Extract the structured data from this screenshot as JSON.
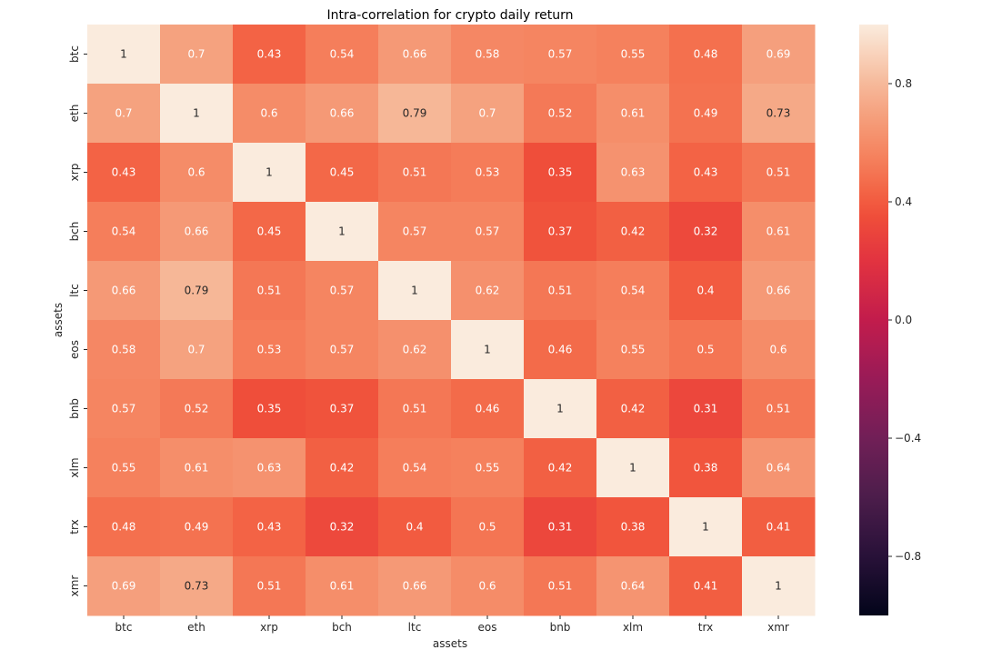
{
  "chart_data": {
    "type": "heatmap",
    "title": "Intra-correlation for crypto daily return",
    "xlabel": "assets",
    "ylabel": "assets",
    "x_categories": [
      "btc",
      "eth",
      "xrp",
      "bch",
      "ltc",
      "eos",
      "bnb",
      "xlm",
      "trx",
      "xmr"
    ],
    "y_categories": [
      "btc",
      "eth",
      "xrp",
      "bch",
      "ltc",
      "eos",
      "bnb",
      "xlm",
      "trx",
      "xmr"
    ],
    "values": [
      [
        1,
        0.7,
        0.43,
        0.54,
        0.66,
        0.58,
        0.57,
        0.55,
        0.48,
        0.69
      ],
      [
        0.7,
        1,
        0.6,
        0.66,
        0.79,
        0.7,
        0.52,
        0.61,
        0.49,
        0.73
      ],
      [
        0.43,
        0.6,
        1,
        0.45,
        0.51,
        0.53,
        0.35,
        0.63,
        0.43,
        0.51
      ],
      [
        0.54,
        0.66,
        0.45,
        1,
        0.57,
        0.57,
        0.37,
        0.42,
        0.32,
        0.61
      ],
      [
        0.66,
        0.79,
        0.51,
        0.57,
        1,
        0.62,
        0.51,
        0.54,
        0.4,
        0.66
      ],
      [
        0.58,
        0.7,
        0.53,
        0.57,
        0.62,
        1,
        0.46,
        0.55,
        0.5,
        0.6
      ],
      [
        0.57,
        0.52,
        0.35,
        0.37,
        0.51,
        0.46,
        1,
        0.42,
        0.31,
        0.51
      ],
      [
        0.55,
        0.61,
        0.63,
        0.42,
        0.54,
        0.55,
        0.42,
        1,
        0.38,
        0.64
      ],
      [
        0.48,
        0.49,
        0.43,
        0.32,
        0.4,
        0.5,
        0.31,
        0.38,
        1,
        0.41
      ],
      [
        0.69,
        0.73,
        0.51,
        0.61,
        0.66,
        0.6,
        0.51,
        0.64,
        0.41,
        1
      ]
    ],
    "vmin": -1,
    "vmax": 1,
    "colormap": "rocket",
    "colorbar_ticks": [
      -0.8,
      -0.4,
      0.0,
      0.4,
      0.8
    ],
    "colorbar_tick_labels": [
      "−0.8",
      "−0.4",
      "0.0",
      "0.4",
      "0.8"
    ],
    "annotations": true,
    "grid": false
  }
}
